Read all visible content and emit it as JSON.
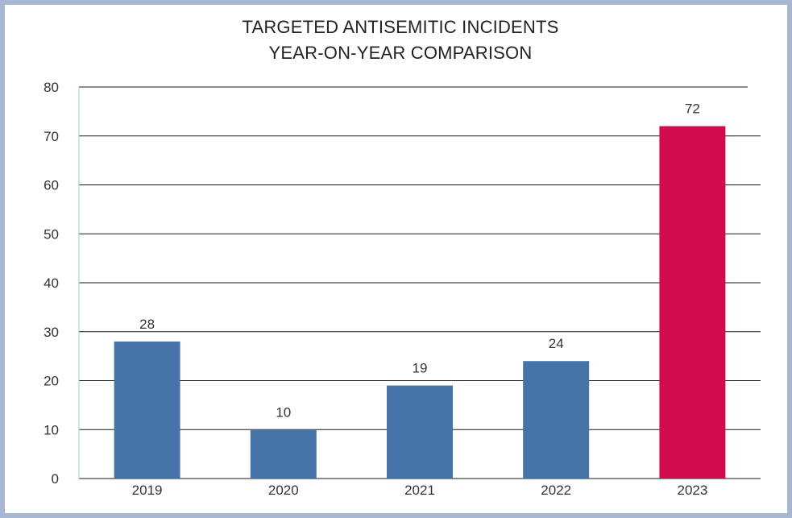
{
  "chart_data": {
    "type": "bar",
    "title_lines": [
      "TARGETED ANTISEMITIC INCIDENTS",
      "YEAR-ON-YEAR COMPARISON"
    ],
    "categories": [
      "2019",
      "2020",
      "2021",
      "2022",
      "2023"
    ],
    "values": [
      28,
      10,
      19,
      24,
      72
    ],
    "value_labels": [
      "28",
      "10",
      "19",
      "24",
      "72"
    ],
    "yticks": [
      "0",
      "10",
      "20",
      "30",
      "40",
      "50",
      "60",
      "70",
      "80"
    ],
    "ylim": [
      0,
      80
    ],
    "grid": true,
    "legend": "none",
    "colors": {
      "bar_default": "#4674a8",
      "bar_highlight": "#d10c4e",
      "frame": "#a7b6d2",
      "axis": "#8fd0e0"
    },
    "highlight_index": 4
  }
}
